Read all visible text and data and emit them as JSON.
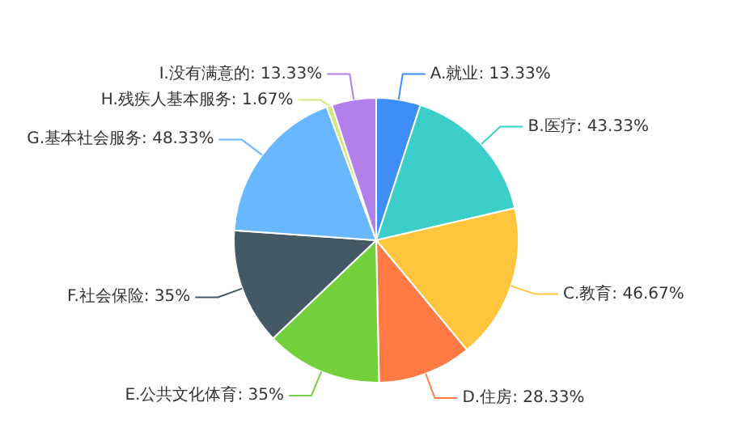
{
  "chart_data": {
    "type": "pie",
    "categories": [
      "A.就业",
      "B.医疗",
      "C.教育",
      "D.住房",
      "E.公共文化体育",
      "F.社会保险",
      "G.基本社会服务",
      "H.残疾人基本服务",
      "I.没有满意的"
    ],
    "values": [
      13.33,
      43.33,
      46.67,
      28.33,
      35,
      35,
      48.33,
      1.67,
      13.33
    ],
    "value_labels": [
      "13.33%",
      "43.33%",
      "46.67%",
      "28.33%",
      "35%",
      "35%",
      "48.33%",
      "1.67%",
      "13.33%"
    ],
    "colors": [
      "#3f8ef7",
      "#3ccfc9",
      "#ffc53d",
      "#ff7a45",
      "#73d13d",
      "#435a66",
      "#69b7ff",
      "#d3e87a",
      "#b37feb"
    ]
  }
}
